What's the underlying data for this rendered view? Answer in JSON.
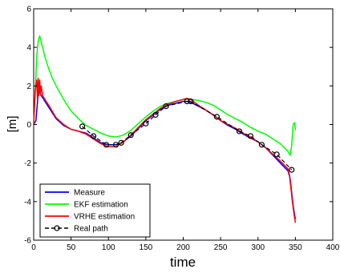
{
  "chart_data": {
    "type": "line",
    "title": "",
    "xlabel": "time",
    "ylabel": "[m]",
    "xlim": [
      0,
      400
    ],
    "ylim": [
      -6,
      6
    ],
    "xticks": [
      "0",
      "50",
      "100",
      "150",
      "200",
      "250",
      "300",
      "350",
      "400"
    ],
    "yticks": [
      "-6",
      "-4",
      "-2",
      "0",
      "2",
      "4",
      "6"
    ],
    "grid": false,
    "legend_position": "bottom-left",
    "series": [
      {
        "name": "Measure",
        "color": "#0000ff",
        "marker": "none",
        "x": [
          0,
          3,
          6,
          8,
          10,
          12,
          15,
          20,
          30,
          40,
          50,
          60,
          70,
          80,
          90,
          100,
          110,
          115,
          120,
          130,
          140,
          150,
          160,
          170,
          180,
          190,
          200,
          205,
          210,
          220,
          230,
          240,
          250,
          260,
          270,
          280,
          290,
          300,
          310,
          320,
          330,
          340,
          343,
          345,
          347,
          349,
          350
        ],
        "y": [
          0,
          0.2,
          1.6,
          1.7,
          1.5,
          1.4,
          1.2,
          0.9,
          0.3,
          -0.05,
          -0.25,
          -0.35,
          -0.45,
          -0.7,
          -0.95,
          -1.05,
          -1.05,
          -1.0,
          -0.9,
          -0.6,
          -0.2,
          0.2,
          0.5,
          0.8,
          1.0,
          1.1,
          1.2,
          1.2,
          1.15,
          0.95,
          0.75,
          0.5,
          0.2,
          -0.05,
          -0.25,
          -0.5,
          -0.7,
          -0.9,
          -1.2,
          -1.6,
          -2.0,
          -2.4,
          -2.8,
          -3.5,
          -4.2,
          -4.7,
          -4.9
        ]
      },
      {
        "name": "EKF estimation",
        "color": "#00ff00",
        "marker": "none",
        "x": [
          0,
          2,
          4,
          6,
          8,
          10,
          12,
          15,
          20,
          25,
          30,
          40,
          50,
          60,
          70,
          80,
          90,
          100,
          110,
          120,
          130,
          140,
          150,
          160,
          170,
          180,
          190,
          200,
          205,
          210,
          220,
          230,
          240,
          250,
          260,
          270,
          280,
          290,
          300,
          310,
          320,
          330,
          335,
          340,
          343,
          345,
          347,
          349,
          350
        ],
        "y": [
          0,
          1.5,
          3.5,
          4.3,
          4.6,
          4.3,
          4.0,
          3.5,
          2.9,
          2.4,
          2.0,
          1.3,
          0.7,
          0.3,
          -0.05,
          -0.25,
          -0.45,
          -0.6,
          -0.65,
          -0.55,
          -0.3,
          0.05,
          0.4,
          0.7,
          0.95,
          1.1,
          1.2,
          1.3,
          1.35,
          1.3,
          1.25,
          1.15,
          1.0,
          0.75,
          0.5,
          0.3,
          0.1,
          -0.15,
          -0.35,
          -0.5,
          -0.75,
          -1.0,
          -1.2,
          -1.4,
          -1.6,
          -1.1,
          0.0,
          0.1,
          -0.3
        ]
      },
      {
        "name": "VRHE estimation",
        "color": "#ff0000",
        "marker": "none",
        "x": [
          0,
          2,
          4,
          5,
          6,
          7,
          8,
          9,
          10,
          12,
          15,
          20,
          30,
          40,
          50,
          60,
          70,
          80,
          90,
          100,
          110,
          120,
          130,
          140,
          150,
          160,
          170,
          180,
          190,
          200,
          205,
          210,
          220,
          230,
          240,
          250,
          260,
          270,
          280,
          290,
          300,
          310,
          320,
          330,
          340,
          342,
          344,
          346,
          348,
          350
        ],
        "y": [
          0,
          1.8,
          2.3,
          1.3,
          2.4,
          1.5,
          2.3,
          1.6,
          2.0,
          1.5,
          1.3,
          1.0,
          0.35,
          0.0,
          -0.25,
          -0.35,
          -0.5,
          -0.75,
          -1.0,
          -1.15,
          -1.15,
          -0.9,
          -0.55,
          -0.15,
          0.25,
          0.55,
          0.85,
          1.05,
          1.2,
          1.3,
          1.35,
          1.3,
          1.0,
          0.75,
          0.5,
          0.2,
          0.0,
          -0.2,
          -0.45,
          -0.65,
          -0.9,
          -1.2,
          -1.55,
          -1.9,
          -2.3,
          -2.6,
          -3.3,
          -4.0,
          -4.6,
          -5.1
        ]
      },
      {
        "name": "Real path",
        "color": "#000000",
        "marker": "circle",
        "dashed": true,
        "x": [
          65,
          80,
          97,
          110,
          117,
          130,
          150,
          163,
          177,
          205,
          210,
          245,
          275,
          290,
          305,
          325,
          345
        ],
        "y": [
          -0.1,
          -0.6,
          -1.05,
          -1.05,
          -0.95,
          -0.55,
          0.05,
          0.5,
          0.95,
          1.2,
          1.2,
          0.4,
          -0.35,
          -0.6,
          -1.05,
          -1.55,
          -2.35
        ]
      }
    ]
  }
}
